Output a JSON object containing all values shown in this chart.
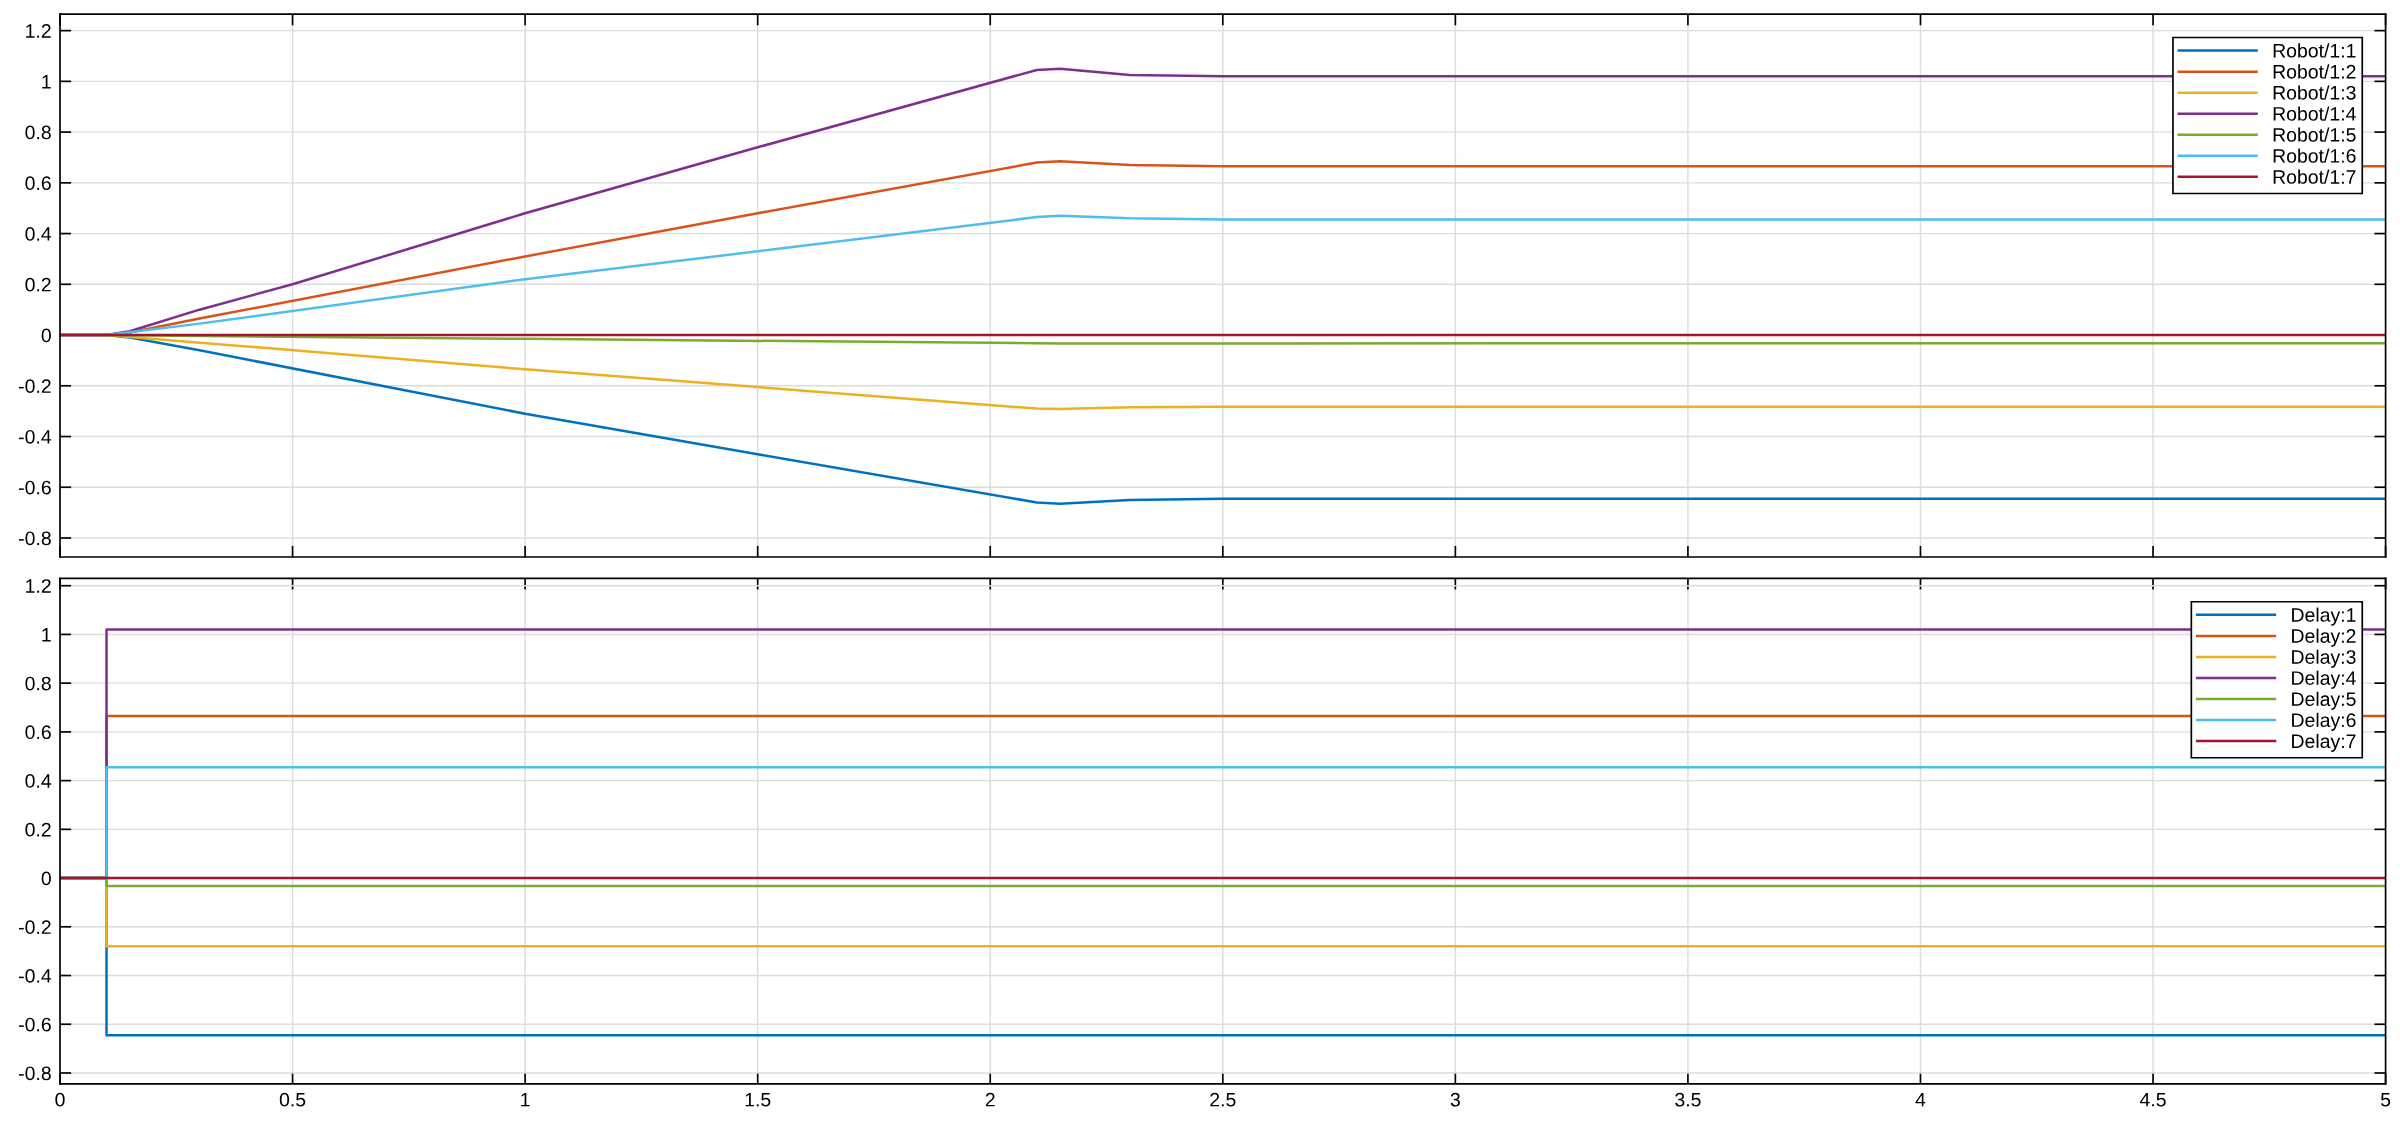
{
  "chart_data": [
    {
      "type": "line",
      "xlim": [
        0,
        5
      ],
      "ylim": [
        -0.875,
        1.265
      ],
      "xticks": [
        0,
        0.5,
        1,
        1.5,
        2,
        2.5,
        3,
        3.5,
        4,
        4.5,
        5
      ],
      "yticks": [
        -0.8,
        -0.6,
        -0.4,
        -0.2,
        0,
        0.2,
        0.4,
        0.6,
        0.8,
        1,
        1.2
      ],
      "grid": true,
      "legend": "top right",
      "tick_labels": "y",
      "series": [
        {
          "name": "Robot/1:1",
          "color": "#0072bd",
          "x": [
            0,
            0.1,
            0.15,
            0.3,
            1,
            1.5,
            2.1,
            2.15,
            2.3,
            2.5,
            5
          ],
          "values": [
            0,
            0,
            -0.01,
            -0.06,
            -0.31,
            -0.47,
            -0.66,
            -0.665,
            -0.65,
            -0.645,
            -0.645
          ]
        },
        {
          "name": "Robot/1:2",
          "color": "#d95319",
          "x": [
            0,
            0.1,
            0.15,
            0.3,
            1,
            1.5,
            2.1,
            2.15,
            2.3,
            2.5,
            5
          ],
          "values": [
            0,
            0,
            0.01,
            0.065,
            0.31,
            0.48,
            0.68,
            0.685,
            0.67,
            0.665,
            0.665
          ]
        },
        {
          "name": "Robot/1:3",
          "color": "#edb120",
          "x": [
            0,
            0.1,
            0.3,
            1,
            1.5,
            2.1,
            2.15,
            2.3,
            2.5,
            5
          ],
          "values": [
            0,
            0,
            -0.03,
            -0.135,
            -0.205,
            -0.29,
            -0.292,
            -0.285,
            -0.283,
            -0.283
          ]
        },
        {
          "name": "Robot/1:4",
          "color": "#7e2f8e",
          "x": [
            0,
            0.1,
            0.15,
            0.3,
            0.5,
            1,
            1.5,
            2.1,
            2.15,
            2.3,
            2.5,
            5
          ],
          "values": [
            0,
            0,
            0.015,
            0.1,
            0.2,
            0.48,
            0.74,
            1.045,
            1.05,
            1.025,
            1.02,
            1.02
          ]
        },
        {
          "name": "Robot/1:5",
          "color": "#77ac30",
          "x": [
            0,
            0.1,
            1,
            2.15,
            5
          ],
          "values": [
            0,
            0,
            -0.015,
            -0.033,
            -0.032
          ]
        },
        {
          "name": "Robot/1:6",
          "color": "#4dbeee",
          "x": [
            0,
            0.1,
            0.3,
            1,
            1.5,
            2.1,
            2.15,
            2.3,
            2.5,
            5
          ],
          "values": [
            0,
            0,
            0.045,
            0.22,
            0.33,
            0.465,
            0.47,
            0.46,
            0.455,
            0.455
          ]
        },
        {
          "name": "Robot/1:7",
          "color": "#a2142f",
          "x": [
            0,
            5
          ],
          "values": [
            0,
            0
          ]
        }
      ]
    },
    {
      "type": "step",
      "xlim": [
        0,
        5
      ],
      "ylim": [
        -0.845,
        1.23
      ],
      "xticks": [
        0,
        0.5,
        1,
        1.5,
        2,
        2.5,
        3,
        3.5,
        4,
        4.5,
        5
      ],
      "yticks": [
        -0.8,
        -0.6,
        -0.4,
        -0.2,
        0,
        0.2,
        0.4,
        0.6,
        0.8,
        1,
        1.2
      ],
      "grid": true,
      "legend": "top right",
      "series": [
        {
          "name": "Delay:1",
          "color": "#0072bd",
          "x": [
            0,
            0.1,
            5
          ],
          "values": [
            0,
            -0.645,
            -0.645
          ]
        },
        {
          "name": "Delay:2",
          "color": "#d95319",
          "x": [
            0,
            0.1,
            5
          ],
          "values": [
            0,
            0.665,
            0.665
          ]
        },
        {
          "name": "Delay:3",
          "color": "#edb120",
          "x": [
            0,
            0.1,
            5
          ],
          "values": [
            0,
            -0.28,
            -0.28
          ]
        },
        {
          "name": "Delay:4",
          "color": "#7e2f8e",
          "x": [
            0,
            0.1,
            5
          ],
          "values": [
            0,
            1.02,
            1.02
          ]
        },
        {
          "name": "Delay:5",
          "color": "#77ac30",
          "x": [
            0,
            0.1,
            5
          ],
          "values": [
            0,
            -0.033,
            -0.033
          ]
        },
        {
          "name": "Delay:6",
          "color": "#4dbeee",
          "x": [
            0,
            0.1,
            5
          ],
          "values": [
            0,
            0.455,
            0.455
          ]
        },
        {
          "name": "Delay:7",
          "color": "#a2142f",
          "x": [
            0,
            0.1,
            5
          ],
          "values": [
            0,
            0,
            0
          ]
        }
      ]
    }
  ]
}
